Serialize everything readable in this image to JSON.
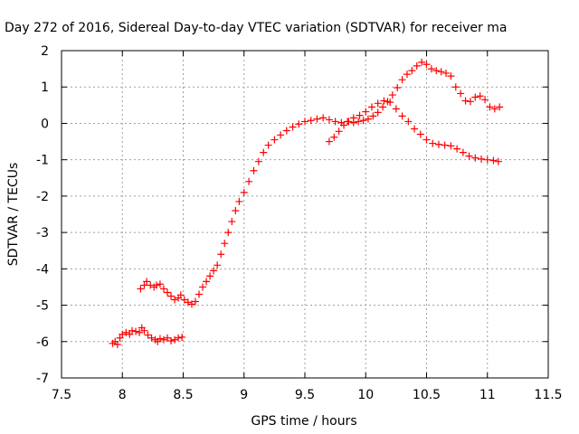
{
  "chart_data": {
    "type": "scatter",
    "title": "Day 272 of 2016, Sidereal Day-to-day VTEC variation (SDTVAR) for receiver ma",
    "xlabel": "GPS time / hours",
    "ylabel": "SDTVAR / TECUs",
    "xlim": [
      7.5,
      11.5
    ],
    "ylim": [
      -7,
      2
    ],
    "xticks": [
      "7.5",
      "8",
      "8.5",
      "9",
      "9.5",
      "10",
      "10.5",
      "11",
      "11.5"
    ],
    "yticks": [
      "-7",
      "-6",
      "-5",
      "-4",
      "-3",
      "-2",
      "-1",
      "0",
      "1",
      "2"
    ],
    "grid": true,
    "marker": "+",
    "color": "#ff0000",
    "series": [
      {
        "points": [
          [
            7.92,
            -6.05
          ],
          [
            7.94,
            -6.0
          ],
          [
            7.96,
            -6.08
          ],
          [
            7.98,
            -5.9
          ],
          [
            8.0,
            -5.8
          ],
          [
            8.03,
            -5.75
          ],
          [
            8.06,
            -5.8
          ],
          [
            8.08,
            -5.7
          ],
          [
            8.11,
            -5.72
          ],
          [
            8.14,
            -5.75
          ],
          [
            8.16,
            -5.62
          ],
          [
            8.18,
            -5.7
          ],
          [
            8.21,
            -5.82
          ],
          [
            8.24,
            -5.9
          ],
          [
            8.27,
            -5.95
          ],
          [
            8.29,
            -6.0
          ],
          [
            8.31,
            -5.92
          ],
          [
            8.34,
            -5.95
          ],
          [
            8.37,
            -5.9
          ],
          [
            8.4,
            -5.98
          ],
          [
            8.43,
            -5.95
          ],
          [
            8.46,
            -5.9
          ],
          [
            8.49,
            -5.88
          ]
        ]
      },
      {
        "points": [
          [
            8.15,
            -4.55
          ],
          [
            8.18,
            -4.45
          ],
          [
            8.2,
            -4.35
          ],
          [
            8.23,
            -4.45
          ],
          [
            8.26,
            -4.5
          ],
          [
            8.28,
            -4.45
          ],
          [
            8.31,
            -4.42
          ],
          [
            8.34,
            -4.55
          ],
          [
            8.37,
            -4.65
          ],
          [
            8.4,
            -4.75
          ],
          [
            8.43,
            -4.85
          ],
          [
            8.46,
            -4.8
          ],
          [
            8.48,
            -4.72
          ],
          [
            8.51,
            -4.85
          ],
          [
            8.54,
            -4.92
          ],
          [
            8.57,
            -4.97
          ],
          [
            8.6,
            -4.9
          ],
          [
            8.63,
            -4.7
          ],
          [
            8.66,
            -4.5
          ],
          [
            8.69,
            -4.35
          ],
          [
            8.72,
            -4.2
          ],
          [
            8.75,
            -4.05
          ],
          [
            8.78,
            -3.9
          ],
          [
            8.81,
            -3.6
          ],
          [
            8.84,
            -3.3
          ],
          [
            8.87,
            -3.0
          ],
          [
            8.9,
            -2.7
          ],
          [
            8.93,
            -2.4
          ],
          [
            8.96,
            -2.15
          ],
          [
            9.0,
            -1.9
          ],
          [
            9.04,
            -1.6
          ],
          [
            9.08,
            -1.3
          ],
          [
            9.12,
            -1.05
          ],
          [
            9.16,
            -0.8
          ],
          [
            9.2,
            -0.6
          ],
          [
            9.25,
            -0.45
          ],
          [
            9.3,
            -0.32
          ],
          [
            9.35,
            -0.2
          ],
          [
            9.4,
            -0.1
          ],
          [
            9.45,
            -0.02
          ],
          [
            9.5,
            0.05
          ],
          [
            9.55,
            0.08
          ],
          [
            9.6,
            0.12
          ],
          [
            9.65,
            0.15
          ],
          [
            9.7,
            0.1
          ],
          [
            9.75,
            0.05
          ],
          [
            9.8,
            0.02
          ],
          [
            9.85,
            0.05
          ],
          [
            9.9,
            0.15
          ],
          [
            9.95,
            0.22
          ],
          [
            10.0,
            0.32
          ],
          [
            10.05,
            0.45
          ],
          [
            10.1,
            0.55
          ],
          [
            10.15,
            0.62
          ],
          [
            10.2,
            0.58
          ],
          [
            10.25,
            0.4
          ],
          [
            10.3,
            0.2
          ],
          [
            10.35,
            0.05
          ],
          [
            10.4,
            -0.15
          ],
          [
            10.45,
            -0.3
          ],
          [
            10.5,
            -0.45
          ],
          [
            10.55,
            -0.55
          ],
          [
            10.6,
            -0.58
          ],
          [
            10.65,
            -0.6
          ],
          [
            10.7,
            -0.62
          ],
          [
            10.75,
            -0.7
          ],
          [
            10.8,
            -0.8
          ],
          [
            10.85,
            -0.9
          ],
          [
            10.9,
            -0.95
          ],
          [
            10.95,
            -0.98
          ],
          [
            11.0,
            -1.0
          ],
          [
            11.05,
            -1.02
          ],
          [
            11.09,
            -1.05
          ]
        ]
      },
      {
        "points": [
          [
            9.7,
            -0.5
          ],
          [
            9.74,
            -0.38
          ],
          [
            9.78,
            -0.22
          ],
          [
            9.82,
            -0.05
          ],
          [
            9.86,
            0.05
          ],
          [
            9.9,
            0.02
          ],
          [
            9.94,
            0.05
          ],
          [
            9.98,
            0.08
          ],
          [
            10.02,
            0.12
          ],
          [
            10.06,
            0.2
          ],
          [
            10.1,
            0.3
          ],
          [
            10.14,
            0.45
          ],
          [
            10.18,
            0.6
          ],
          [
            10.22,
            0.78
          ],
          [
            10.26,
            0.98
          ],
          [
            10.3,
            1.2
          ],
          [
            10.34,
            1.35
          ],
          [
            10.38,
            1.45
          ],
          [
            10.42,
            1.58
          ],
          [
            10.46,
            1.68
          ],
          [
            10.5,
            1.62
          ],
          [
            10.54,
            1.5
          ],
          [
            10.58,
            1.45
          ],
          [
            10.62,
            1.42
          ],
          [
            10.66,
            1.38
          ],
          [
            10.7,
            1.3
          ],
          [
            10.74,
            1.0
          ],
          [
            10.78,
            0.82
          ],
          [
            10.82,
            0.62
          ],
          [
            10.86,
            0.6
          ],
          [
            10.9,
            0.72
          ],
          [
            10.94,
            0.75
          ],
          [
            10.98,
            0.65
          ],
          [
            11.02,
            0.45
          ],
          [
            11.06,
            0.4
          ],
          [
            11.1,
            0.45
          ]
        ]
      }
    ]
  }
}
